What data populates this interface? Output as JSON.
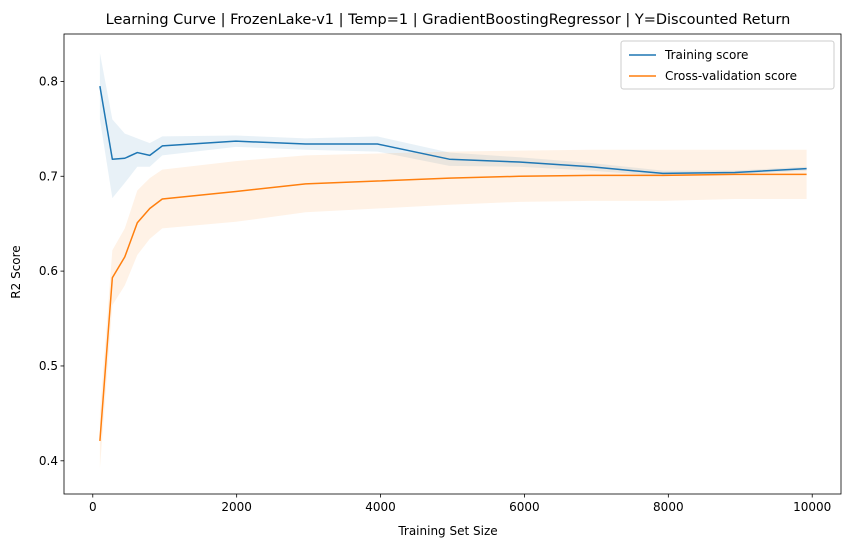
{
  "chart_data": {
    "type": "line",
    "title": "Learning Curve | FrozenLake-v1 | Temp=1 | GradientBoostingRegressor | Y=Discounted Return",
    "xlabel": "Training Set Size",
    "ylabel": "R2 Score",
    "xlim": [
      -400,
      10400
    ],
    "ylim": [
      0.365,
      0.85
    ],
    "xticks": [
      0,
      2000,
      4000,
      6000,
      8000,
      10000
    ],
    "xtick_labels": [
      "0",
      "2000",
      "4000",
      "6000",
      "8000",
      "10000"
    ],
    "yticks": [
      0.4,
      0.5,
      0.6,
      0.7,
      0.8
    ],
    "ytick_labels": [
      "0.4",
      "0.5",
      "0.6",
      "0.7",
      "0.8"
    ],
    "grid": false,
    "legend_position": "top-right",
    "x": [
      99,
      272,
      445,
      619,
      792,
      966,
      1989,
      2958,
      3957,
      4956,
      5926,
      6925,
      7924,
      8923,
      9922
    ],
    "series": [
      {
        "name": "Training score",
        "color": "#1f77b4",
        "values": [
          0.795,
          0.718,
          0.719,
          0.725,
          0.722,
          0.732,
          0.737,
          0.734,
          0.734,
          0.718,
          0.715,
          0.71,
          0.703,
          0.704,
          0.708
        ],
        "band_upper": [
          0.83,
          0.76,
          0.745,
          0.74,
          0.735,
          0.742,
          0.743,
          0.74,
          0.742,
          0.725,
          0.72,
          0.714,
          0.706,
          0.706,
          0.71
        ],
        "band_lower": [
          0.76,
          0.677,
          0.693,
          0.71,
          0.71,
          0.722,
          0.731,
          0.728,
          0.726,
          0.711,
          0.71,
          0.706,
          0.7,
          0.702,
          0.706
        ]
      },
      {
        "name": "Cross-validation score",
        "color": "#ff7f0e",
        "values": [
          0.421,
          0.593,
          0.615,
          0.651,
          0.666,
          0.676,
          0.684,
          0.692,
          0.695,
          0.698,
          0.7,
          0.701,
          0.701,
          0.702,
          0.702
        ],
        "band_upper": [
          0.45,
          0.622,
          0.645,
          0.685,
          0.698,
          0.707,
          0.716,
          0.722,
          0.724,
          0.726,
          0.727,
          0.728,
          0.728,
          0.728,
          0.728
        ],
        "band_lower": [
          0.392,
          0.564,
          0.585,
          0.617,
          0.634,
          0.645,
          0.652,
          0.662,
          0.666,
          0.67,
          0.673,
          0.674,
          0.674,
          0.676,
          0.676
        ]
      }
    ]
  }
}
